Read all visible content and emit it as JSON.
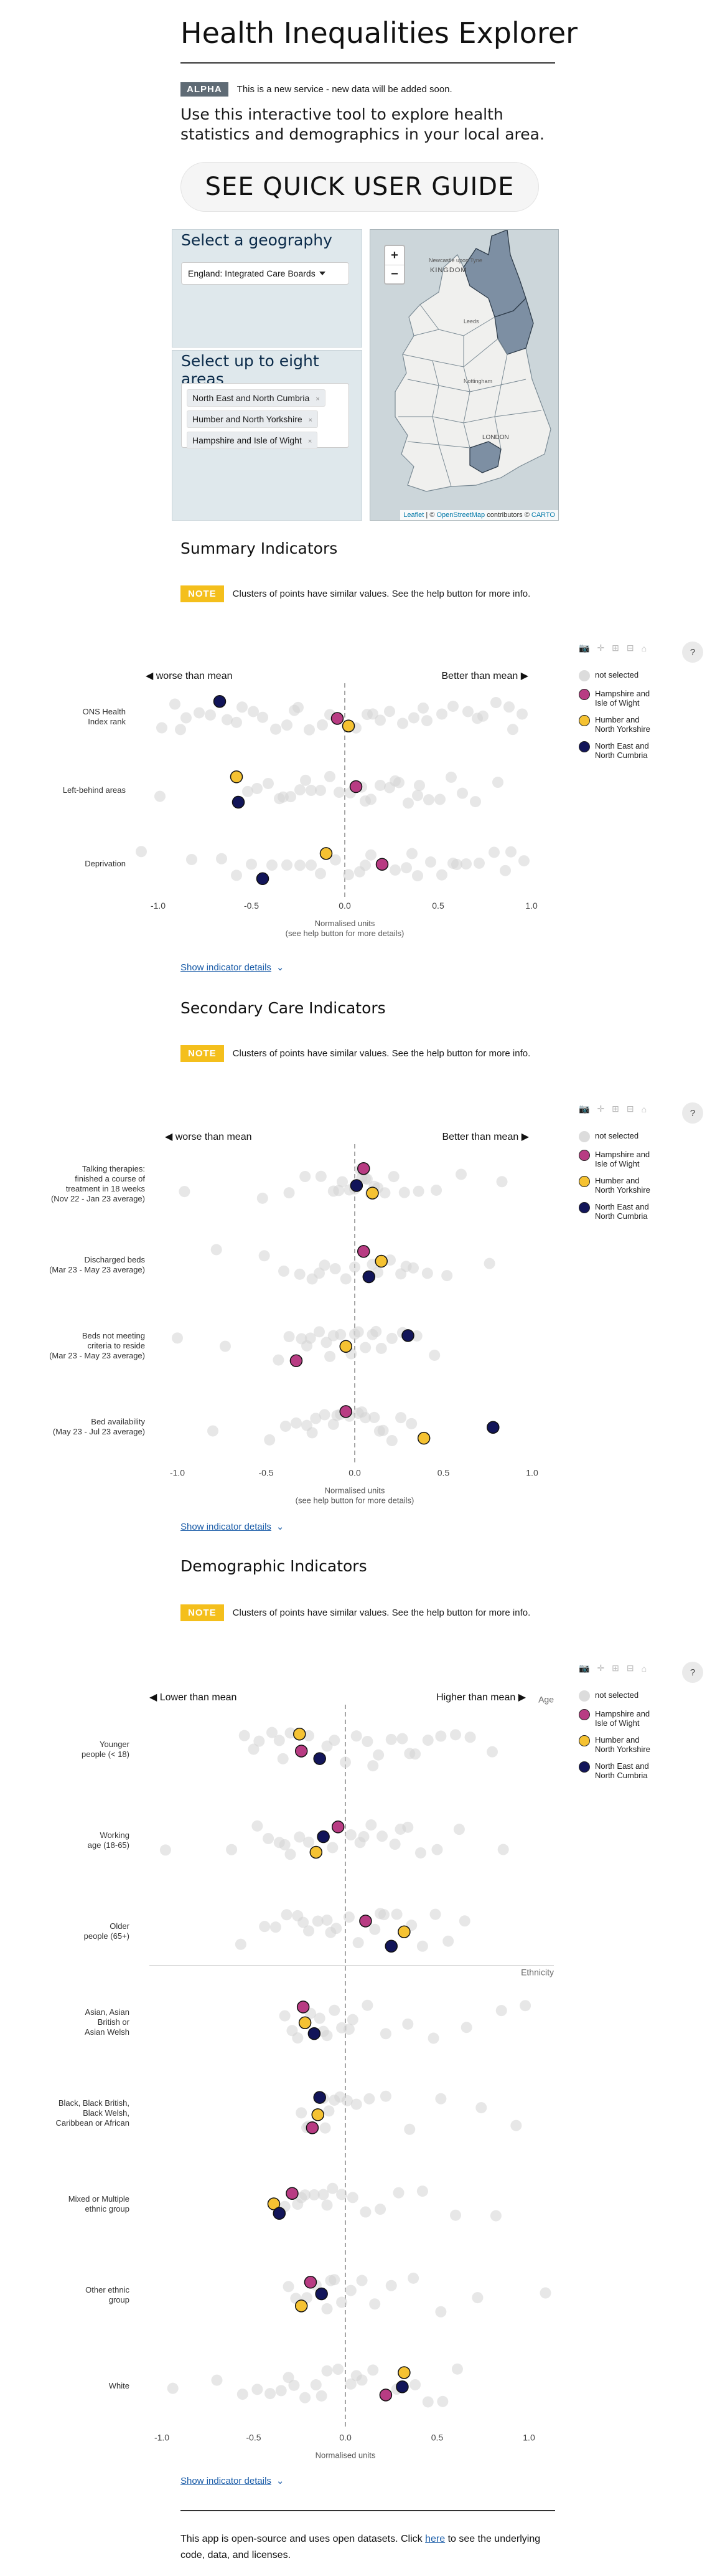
{
  "header": {
    "title": "Health Inequalities Explorer",
    "badge": "ALPHA",
    "badge_text": "This is a new service - new data will be added soon.",
    "intro": "Use this interactive tool to explore health statistics and demographics in your local area.",
    "guide_button": "SEE QUICK USER GUIDE"
  },
  "geography": {
    "title": "Select a geography",
    "selected": "England: Integrated Care Boards"
  },
  "areas": {
    "title": "Select up to eight areas",
    "chips": [
      "North East and North Cumbria",
      "Humber and North Yorkshire",
      "Hampshire and Isle of Wight"
    ],
    "chip_remove": "×"
  },
  "map": {
    "zoom_in": "+",
    "zoom_out": "−",
    "labels": [
      "Newcastle upon Tyne",
      "KINGDOM",
      "Leeds",
      "Nottingham",
      "LONDON"
    ],
    "attribution_leaflet": "Leaflet",
    "attribution_sep1": " | © ",
    "attribution_osm": "OpenStreetMap",
    "attribution_mid": " contributors © ",
    "attribution_carto": "CARTO"
  },
  "note": {
    "badge": "NOTE",
    "text": "Clusters of points have similar values. See the help button for more info."
  },
  "toolbar": {
    "icons": [
      "camera-icon",
      "pan-icon",
      "zoom-in-icon",
      "zoom-out-icon",
      "home-icon"
    ],
    "glyphs": [
      "📷",
      "✛",
      "⊞",
      "⊟",
      "⌂"
    ],
    "help": "?"
  },
  "colors": {
    "not_selected": "#d3d3d3",
    "Hampshire and Isle of Wight": "#b83c83",
    "Humber and North Yorkshire": "#f5c232",
    "North East and North Cumbria": "#121559"
  },
  "legend": [
    {
      "key": "not_selected",
      "label": "not selected"
    },
    {
      "key": "Hampshire and Isle of Wight",
      "label": "Hampshire and Isle of Wight"
    },
    {
      "key": "Humber and North Yorkshire",
      "label": "Humber and North Yorkshire"
    },
    {
      "key": "North East and North Cumbria",
      "label": "North East and North Cumbria"
    }
  ],
  "show_details": "Show indicator details",
  "footer": {
    "before": "This app is open-source and uses open datasets. Click ",
    "link": "here",
    "after": " to see the underlying code, data, and licenses."
  },
  "chart_data": [
    {
      "type": "scatter",
      "title": "Summary Indicators",
      "left_label": "◀ worse than mean",
      "right_label": "Better than mean ▶",
      "xlabel": "Normalised units",
      "xlabel2": "(see help button for more details)",
      "xlim": [
        -1.0,
        1.0
      ],
      "xticks": [
        -1.0,
        -0.5,
        0.0,
        0.5,
        1.0
      ],
      "grid": false,
      "rows": [
        {
          "label": [
            "ONS Health",
            "Index rank"
          ],
          "points": [
            {
              "area": "North East and North Cumbria",
              "x": -0.67
            },
            {
              "area": "Hampshire and Isle of Wight",
              "x": -0.04
            },
            {
              "area": "Humber and North Yorkshire",
              "x": 0.02
            }
          ],
          "others": [
            -0.98,
            -0.91,
            -0.85,
            -0.78,
            -0.72,
            -0.63,
            -0.55,
            -0.49,
            -0.44,
            -0.37,
            -0.31,
            -0.25,
            -0.19,
            -0.12,
            -0.08,
            0.06,
            0.12,
            0.19,
            0.24,
            0.31,
            0.37,
            0.44,
            0.52,
            0.58,
            0.66,
            0.74,
            0.81,
            0.88,
            0.95,
            -0.88,
            -0.58,
            -0.27,
            0.15,
            0.42,
            0.71,
            0.9
          ]
        },
        {
          "label": [
            "Left-behind areas"
          ],
          "points": [
            {
              "area": "Humber and North Yorkshire",
              "x": -0.58
            },
            {
              "area": "Hampshire and Isle of Wight",
              "x": 0.06
            },
            {
              "area": "North East and North Cumbria",
              "x": -0.57
            }
          ],
          "others": [
            -0.99,
            -0.52,
            -0.47,
            -0.41,
            -0.35,
            -0.29,
            -0.24,
            -0.18,
            -0.13,
            -0.08,
            -0.03,
            0.03,
            0.09,
            0.14,
            0.19,
            0.24,
            0.29,
            0.34,
            0.39,
            0.45,
            0.51,
            0.57,
            0.63,
            0.7,
            0.82,
            -0.33,
            -0.21,
            0.11,
            0.27,
            0.4
          ]
        },
        {
          "label": [
            "Deprivation"
          ],
          "points": [
            {
              "area": "Humber and North Yorkshire",
              "x": -0.1
            },
            {
              "area": "Hampshire and Isle of Wight",
              "x": 0.2
            },
            {
              "area": "North East and North Cumbria",
              "x": -0.44
            }
          ],
          "others": [
            -1.09,
            -0.82,
            -0.66,
            -0.58,
            -0.5,
            -0.39,
            -0.31,
            -0.24,
            -0.18,
            -0.05,
            0.02,
            0.08,
            0.14,
            0.27,
            0.33,
            0.39,
            0.46,
            0.52,
            0.58,
            0.65,
            0.72,
            0.8,
            0.89,
            0.96,
            -0.13,
            0.11,
            0.36,
            0.6,
            0.86
          ]
        }
      ]
    },
    {
      "type": "scatter",
      "title": "Secondary Care Indicators",
      "left_label": "◀ worse than mean",
      "right_label": "Better than mean ▶",
      "xlabel": "Normalised units",
      "xlabel2": "(see help button for more details)",
      "xlim": [
        -1.0,
        1.0
      ],
      "xticks": [
        -1.0,
        -0.5,
        0.0,
        0.5,
        1.0
      ],
      "grid": false,
      "rows": [
        {
          "label": [
            "Talking therapies:",
            "finished a course of",
            "treatment in 18 weeks",
            "(Nov 22 - Jan 23 average)"
          ],
          "points": [
            {
              "area": "Hampshire and Isle of Wight",
              "x": 0.05
            },
            {
              "area": "North East and North Cumbria",
              "x": 0.01
            },
            {
              "area": "Humber and North Yorkshire",
              "x": 0.1
            }
          ],
          "others": [
            -0.96,
            -0.52,
            -0.37,
            -0.28,
            -0.19,
            -0.12,
            -0.07,
            -0.03,
            0.03,
            0.06,
            0.09,
            0.13,
            0.17,
            0.22,
            0.28,
            0.36,
            0.46,
            0.6,
            0.83,
            -0.09,
            0.0,
            0.04,
            0.07,
            0.11
          ]
        },
        {
          "label": [
            "Discharged beds",
            "(Mar 23 - May 23 average)"
          ],
          "points": [
            {
              "area": "Hampshire and Isle of Wight",
              "x": 0.05
            },
            {
              "area": "Humber and North Yorkshire",
              "x": 0.15
            },
            {
              "area": "North East and North Cumbria",
              "x": 0.08
            }
          ],
          "others": [
            -0.78,
            -0.51,
            -0.4,
            -0.31,
            -0.24,
            -0.17,
            -0.11,
            -0.05,
            0.0,
            0.1,
            0.2,
            0.26,
            0.33,
            0.41,
            0.52,
            0.76,
            -0.2,
            0.13,
            0.29
          ]
        },
        {
          "label": [
            "Beds not meeting",
            "criteria to reside",
            "(Mar 23 - May 23 average)"
          ],
          "points": [
            {
              "area": "North East and North Cumbria",
              "x": 0.3
            },
            {
              "area": "Humber and North Yorkshire",
              "x": -0.05
            },
            {
              "area": "Hampshire and Isle of Wight",
              "x": -0.33
            }
          ],
          "others": [
            -1.0,
            -0.73,
            -0.43,
            -0.37,
            -0.3,
            -0.25,
            -0.2,
            -0.16,
            -0.12,
            -0.08,
            -0.02,
            0.02,
            0.06,
            0.1,
            0.15,
            0.21,
            0.27,
            0.35,
            0.45,
            -0.27,
            -0.14,
            0.0,
            0.12
          ]
        },
        {
          "label": [
            "Bed availability",
            "(May 23 - Jul 23 average)"
          ],
          "points": [
            {
              "area": "Hampshire and Isle of Wight",
              "x": -0.05
            },
            {
              "area": "North East and North Cumbria",
              "x": 0.78
            },
            {
              "area": "Humber and North Yorkshire",
              "x": 0.39
            }
          ],
          "others": [
            -0.8,
            -0.48,
            -0.39,
            -0.33,
            -0.27,
            -0.22,
            -0.17,
            -0.12,
            -0.08,
            -0.03,
            0.02,
            0.06,
            0.11,
            0.16,
            0.21,
            0.26,
            0.32,
            -0.24,
            -0.1,
            0.04,
            0.14
          ]
        }
      ]
    },
    {
      "type": "scatter",
      "title": "Demographic Indicators",
      "left_label": "◀ Lower than mean",
      "right_label": "Higher than mean ▶",
      "xlabel": "Normalised units",
      "xlabel2": "(see help button for more details)",
      "xlim": [
        -1.0,
        1.0
      ],
      "xticks": [
        -1.0,
        -0.5,
        0.0,
        0.5,
        1.0
      ],
      "grid": false,
      "groups": [
        {
          "label": "Age",
          "first_row": 0
        },
        {
          "label": "Ethnicity",
          "first_row": 3
        }
      ],
      "rows": [
        {
          "label": [
            "Younger",
            "people (< 18)"
          ],
          "points": [
            {
              "area": "Humber and North Yorkshire",
              "x": -0.25
            },
            {
              "area": "Hampshire and Isle of Wight",
              "x": -0.24
            },
            {
              "area": "North East and North Cumbria",
              "x": -0.14
            }
          ],
          "others": [
            -0.55,
            -0.47,
            -0.4,
            -0.34,
            -0.3,
            -0.2,
            -0.1,
            -0.06,
            0.0,
            0.06,
            0.12,
            0.18,
            0.25,
            0.31,
            0.38,
            0.45,
            0.52,
            0.6,
            0.68,
            0.8,
            -0.5,
            -0.36,
            0.15,
            0.35
          ]
        },
        {
          "label": [
            "Working",
            "age (18-65)"
          ],
          "points": [
            {
              "area": "Hampshire and Isle of Wight",
              "x": -0.04
            },
            {
              "area": "North East and North Cumbria",
              "x": -0.12
            },
            {
              "area": "Humber and North Yorkshire",
              "x": -0.16
            }
          ],
          "others": [
            -0.98,
            -0.62,
            -0.48,
            -0.42,
            -0.36,
            -0.3,
            -0.25,
            -0.2,
            -0.07,
            0.03,
            0.08,
            0.14,
            0.2,
            0.27,
            0.34,
            0.41,
            0.5,
            0.62,
            0.86,
            -0.33,
            0.1,
            0.3
          ]
        },
        {
          "label": [
            "Older",
            "people (65+)"
          ],
          "points": [
            {
              "area": "Hampshire and Isle of Wight",
              "x": 0.11
            },
            {
              "area": "Humber and North Yorkshire",
              "x": 0.32
            },
            {
              "area": "North East and North Cumbria",
              "x": 0.25
            }
          ],
          "others": [
            -0.57,
            -0.44,
            -0.38,
            -0.32,
            -0.26,
            -0.2,
            -0.15,
            -0.1,
            -0.05,
            0.02,
            0.07,
            0.16,
            0.21,
            0.28,
            0.36,
            0.42,
            0.49,
            0.56,
            0.65,
            -0.23,
            -0.08,
            0.19
          ]
        },
        {
          "label": [
            "Asian, Asian",
            "British or",
            "Asian Welsh"
          ],
          "points": [
            {
              "area": "Hampshire and Isle of Wight",
              "x": -0.23
            },
            {
              "area": "Humber and North Yorkshire",
              "x": -0.22
            },
            {
              "area": "North East and North Cumbria",
              "x": -0.17
            }
          ],
          "others": [
            -0.33,
            -0.29,
            -0.26,
            -0.19,
            -0.14,
            -0.1,
            -0.06,
            -0.02,
            0.04,
            0.12,
            0.22,
            0.34,
            0.48,
            0.66,
            0.85,
            0.98,
            -0.12,
            0.02
          ]
        },
        {
          "label": [
            "Black, Black British,",
            "Black Welsh,",
            "Caribbean or African"
          ],
          "points": [
            {
              "area": "North East and North Cumbria",
              "x": -0.14
            },
            {
              "area": "Humber and North Yorkshire",
              "x": -0.15
            },
            {
              "area": "Hampshire and Isle of Wight",
              "x": -0.18
            }
          ],
          "others": [
            -0.24,
            -0.21,
            -0.12,
            -0.09,
            -0.06,
            -0.03,
            0.01,
            0.06,
            0.13,
            0.22,
            0.35,
            0.52,
            0.74,
            0.93,
            -0.2,
            -0.11
          ]
        },
        {
          "label": [
            "Mixed or Multiple",
            "ethnic group"
          ],
          "points": [
            {
              "area": "Hampshire and Isle of Wight",
              "x": -0.29
            },
            {
              "area": "Humber and North Yorkshire",
              "x": -0.39
            },
            {
              "area": "North East and North Cumbria",
              "x": -0.36
            }
          ],
          "others": [
            -0.33,
            -0.26,
            -0.22,
            -0.17,
            -0.12,
            -0.07,
            -0.02,
            0.04,
            0.11,
            0.19,
            0.29,
            0.42,
            0.6,
            0.82,
            -0.24,
            -0.1
          ]
        },
        {
          "label": [
            "Other ethnic",
            "group"
          ],
          "points": [
            {
              "area": "Hampshire and Isle of Wight",
              "x": -0.19
            },
            {
              "area": "North East and North Cumbria",
              "x": -0.13
            },
            {
              "area": "Humber and North Yorkshire",
              "x": -0.24
            }
          ],
          "others": [
            -0.31,
            -0.27,
            -0.16,
            -0.1,
            -0.06,
            -0.02,
            0.03,
            0.09,
            0.16,
            0.25,
            0.37,
            0.52,
            0.72,
            1.09,
            -0.21,
            -0.08
          ]
        },
        {
          "label": [
            "White"
          ],
          "points": [
            {
              "area": "Humber and North Yorkshire",
              "x": 0.32
            },
            {
              "area": "North East and North Cumbria",
              "x": 0.31
            },
            {
              "area": "Hampshire and Isle of Wight",
              "x": 0.22
            }
          ],
          "others": [
            -0.94,
            -0.7,
            -0.56,
            -0.48,
            -0.41,
            -0.35,
            -0.28,
            -0.22,
            -0.16,
            -0.1,
            -0.04,
            0.03,
            0.09,
            0.15,
            0.28,
            0.38,
            0.45,
            0.53,
            0.61,
            -0.31,
            -0.13,
            0.06
          ]
        }
      ]
    }
  ]
}
